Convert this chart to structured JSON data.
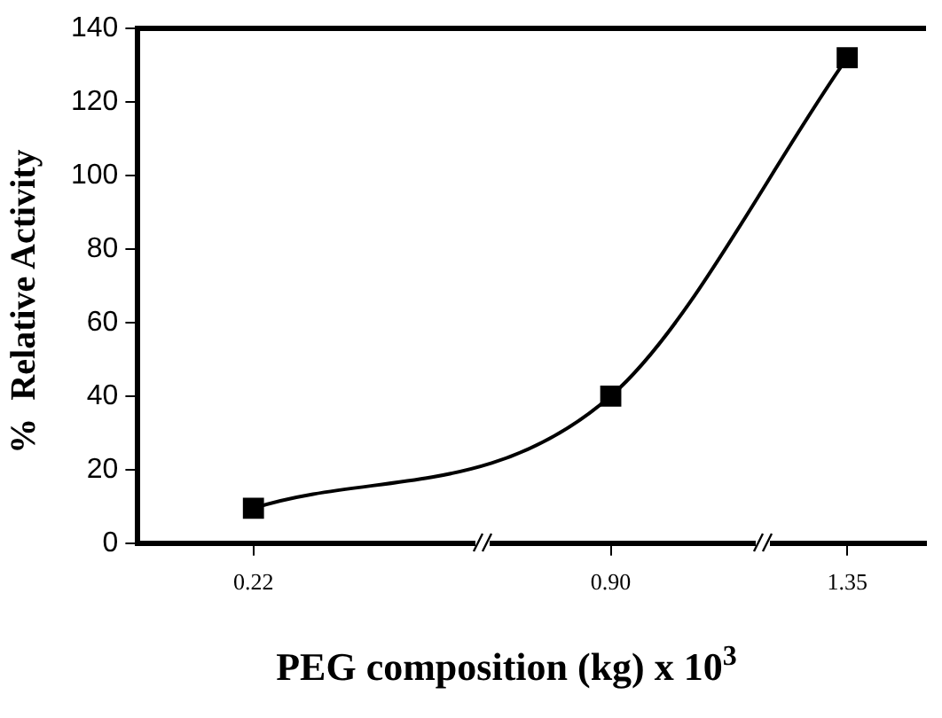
{
  "chart_data": {
    "type": "line",
    "xlabel": "PEG composition (kg) x 10$^{3}$",
    "ylabel": "%  Relative Activity",
    "x": [
      0.22,
      0.9,
      1.35
    ],
    "series": [
      {
        "color": "#000000",
        "values": [
          9.5,
          40,
          132
        ]
      }
    ],
    "xlim": [
      0,
      1.5
    ],
    "xticks": [
      0.22,
      {
        "value": 0.9,
        "label": "0.90"
      },
      1.35
    ],
    "ylim": [
      0,
      140
    ],
    "yticks": [
      0,
      20,
      40,
      60,
      80,
      100,
      120,
      140
    ],
    "grid": false,
    "legend": false,
    "marker": "square",
    "line_style": "solid"
  }
}
